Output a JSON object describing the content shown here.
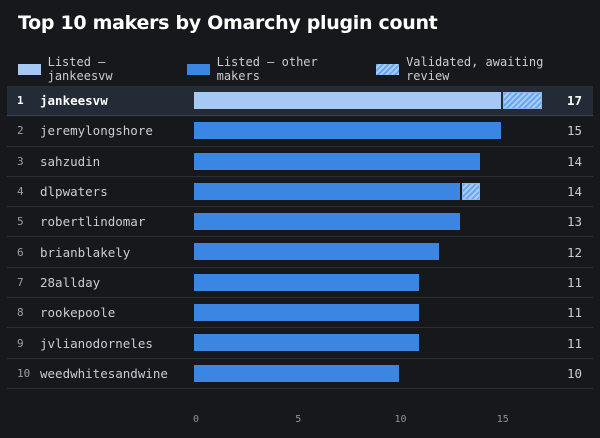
{
  "chart_data": {
    "type": "bar",
    "orientation": "horizontal",
    "stacked": true,
    "title": "Top 10 makers by Omarchy plugin count",
    "legend": [
      {
        "label": "Listed — jankeesvw",
        "color": "#a6c8f5"
      },
      {
        "label": "Listed — other makers",
        "color": "#3b86e3"
      },
      {
        "label": "Validated, awaiting review",
        "color": "#6aa6ee",
        "pattern": "hatched"
      }
    ],
    "legend_position": "top",
    "highlight_maker": "jankeesvw",
    "rows": [
      {
        "rank": "1",
        "maker": "jankeesvw",
        "listed": 15,
        "pending": 2,
        "total": "17"
      },
      {
        "rank": "2",
        "maker": "jeremylongshore",
        "listed": 15,
        "pending": 0,
        "total": "15"
      },
      {
        "rank": "3",
        "maker": "sahzudin",
        "listed": 14,
        "pending": 0,
        "total": "14"
      },
      {
        "rank": "4",
        "maker": "dlpwaters",
        "listed": 13,
        "pending": 1,
        "total": "14"
      },
      {
        "rank": "5",
        "maker": "robertlindomar",
        "listed": 13,
        "pending": 0,
        "total": "13"
      },
      {
        "rank": "6",
        "maker": "brianblakely",
        "listed": 12,
        "pending": 0,
        "total": "12"
      },
      {
        "rank": "7",
        "maker": "28allday",
        "listed": 11,
        "pending": 0,
        "total": "11"
      },
      {
        "rank": "8",
        "maker": "rookepoole",
        "listed": 11,
        "pending": 0,
        "total": "11"
      },
      {
        "rank": "9",
        "maker": "jvlianodorneles",
        "listed": 11,
        "pending": 0,
        "total": "11"
      },
      {
        "rank": "10",
        "maker": "weedwhitesandwine",
        "listed": 10,
        "pending": 0,
        "total": "10"
      }
    ],
    "x_ticks": [
      "0",
      "5",
      "10",
      "15"
    ],
    "xlim": [
      0,
      17
    ],
    "grid": false
  }
}
